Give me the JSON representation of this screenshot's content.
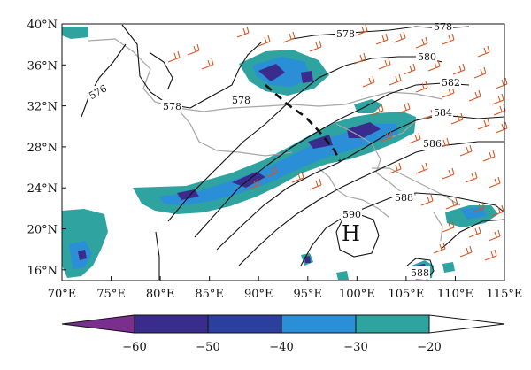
{
  "map": {
    "x_ticks": [
      "70°E",
      "75°E",
      "80°E",
      "85°E",
      "90°E",
      "95°E",
      "100°E",
      "105°E",
      "110°E",
      "115°E"
    ],
    "y_ticks": [
      "40°N",
      "36°N",
      "32°N",
      "28°N",
      "24°N",
      "20°N",
      "16°N"
    ],
    "high_label": "H",
    "contour_labels": [
      "576",
      "578",
      "578",
      "578",
      "578",
      "580",
      "582",
      "584",
      "586",
      "588",
      "590",
      "588"
    ]
  },
  "colorbar": {
    "ticks": [
      "−60",
      "−50",
      "−40",
      "−30",
      "−20"
    ],
    "colors": [
      "#7a2f8f",
      "#3a2c8c",
      "#2a8fd6",
      "#2fa3a0",
      "#ffffff"
    ]
  },
  "colors": {
    "teal": "#2fa3a0",
    "blue": "#2a8fd6",
    "navy": "#3a2c8c",
    "purple": "#7a2f8f",
    "wind_barb": "#d9531e",
    "contour": "#111111",
    "border": "#a6a6a6"
  }
}
